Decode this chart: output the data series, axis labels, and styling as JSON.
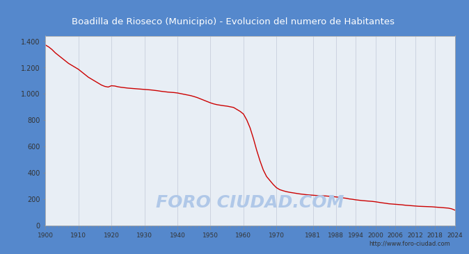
{
  "title": "Boadilla de Rioseco (Municipio) - Evolucion del numero de Habitantes",
  "title_color": "#ffffff",
  "title_bg_color": "#5588cc",
  "plot_bg_color": "#e8eef5",
  "outer_bg_color": "#5588cc",
  "line_color": "#cc0000",
  "watermark_text": "FORO CIUDAD.COM",
  "watermark_color": "#b0c8e8",
  "url_text": "http://www.foro-ciudad.com",
  "years": [
    1900,
    1901,
    1902,
    1903,
    1904,
    1905,
    1906,
    1907,
    1908,
    1909,
    1910,
    1911,
    1912,
    1913,
    1914,
    1915,
    1916,
    1917,
    1918,
    1919,
    1920,
    1921,
    1922,
    1923,
    1924,
    1925,
    1926,
    1927,
    1928,
    1929,
    1930,
    1931,
    1932,
    1933,
    1934,
    1935,
    1936,
    1937,
    1938,
    1939,
    1940,
    1941,
    1942,
    1943,
    1944,
    1945,
    1946,
    1947,
    1948,
    1949,
    1950,
    1951,
    1952,
    1953,
    1954,
    1955,
    1956,
    1957,
    1958,
    1959,
    1960,
    1961,
    1962,
    1963,
    1964,
    1965,
    1966,
    1967,
    1968,
    1969,
    1970,
    1971,
    1972,
    1973,
    1974,
    1975,
    1976,
    1977,
    1978,
    1979,
    1980,
    1981,
    1982,
    1983,
    1984,
    1985,
    1986,
    1987,
    1988,
    1989,
    1990,
    1991,
    1992,
    1993,
    1994,
    1995,
    1996,
    1997,
    1998,
    1999,
    2000,
    2001,
    2002,
    2003,
    2004,
    2005,
    2006,
    2007,
    2008,
    2009,
    2010,
    2011,
    2012,
    2013,
    2014,
    2015,
    2016,
    2017,
    2018,
    2019,
    2020,
    2021,
    2022,
    2023,
    2024
  ],
  "population": [
    1370,
    1355,
    1335,
    1310,
    1290,
    1270,
    1250,
    1230,
    1215,
    1200,
    1185,
    1165,
    1145,
    1125,
    1110,
    1095,
    1080,
    1065,
    1055,
    1050,
    1060,
    1058,
    1052,
    1048,
    1045,
    1042,
    1040,
    1038,
    1036,
    1034,
    1032,
    1030,
    1028,
    1025,
    1022,
    1018,
    1015,
    1012,
    1010,
    1008,
    1005,
    1000,
    995,
    990,
    985,
    978,
    970,
    960,
    950,
    940,
    930,
    922,
    916,
    912,
    908,
    905,
    900,
    895,
    880,
    865,
    845,
    800,
    740,
    660,
    570,
    490,
    420,
    370,
    340,
    310,
    285,
    270,
    262,
    255,
    250,
    246,
    242,
    238,
    235,
    232,
    230,
    228,
    226,
    225,
    224,
    222,
    220,
    218,
    215,
    212,
    208,
    205,
    200,
    197,
    193,
    190,
    187,
    185,
    183,
    181,
    178,
    174,
    170,
    167,
    163,
    161,
    159,
    157,
    155,
    152,
    150,
    148,
    146,
    144,
    143,
    142,
    141,
    140,
    138,
    136,
    134,
    132,
    130,
    125,
    115
  ],
  "xticks": [
    1900,
    1910,
    1920,
    1930,
    1940,
    1950,
    1960,
    1970,
    1981,
    1988,
    1994,
    2000,
    2006,
    2012,
    2018,
    2024
  ],
  "yticks": [
    0,
    200,
    400,
    600,
    800,
    1000,
    1200,
    1400
  ],
  "ylim": [
    0,
    1440
  ],
  "xlim": [
    1900,
    2024
  ]
}
